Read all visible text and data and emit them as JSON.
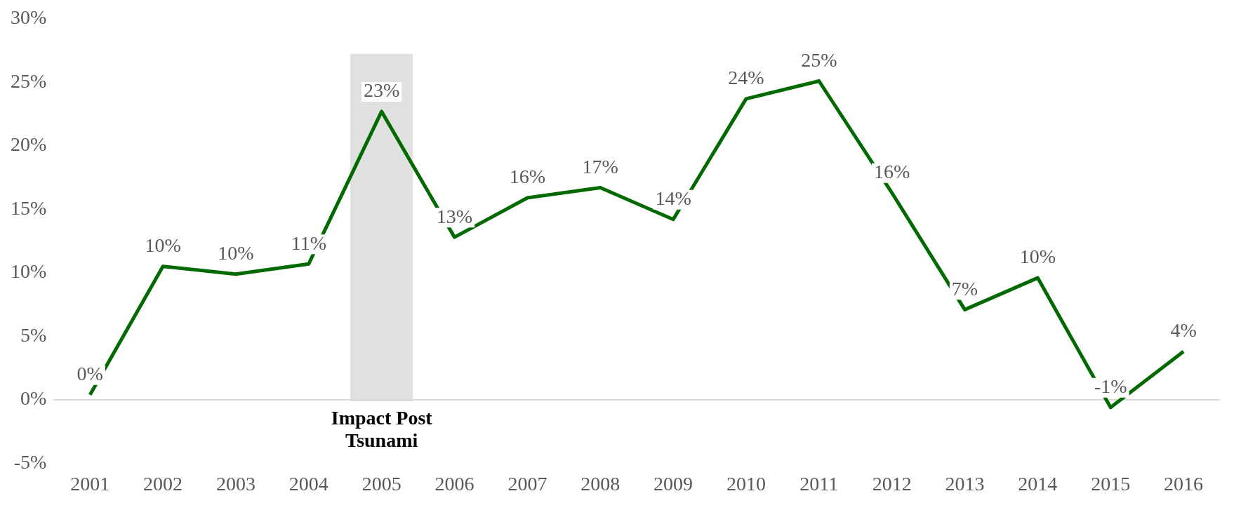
{
  "chart_data": {
    "type": "line",
    "categories": [
      "2001",
      "2002",
      "2003",
      "2004",
      "2005",
      "2006",
      "2007",
      "2008",
      "2009",
      "2010",
      "2011",
      "2012",
      "2013",
      "2014",
      "2015",
      "2016"
    ],
    "series": [
      {
        "color": "#006a00",
        "values": [
          0.4,
          10.5,
          9.9,
          10.7,
          22.7,
          12.8,
          15.9,
          16.7,
          14.2,
          23.7,
          25.1,
          16.3,
          7.1,
          9.6,
          -0.6,
          3.8
        ],
        "value_labels": [
          "0%",
          "10%",
          "10%",
          "11%",
          "23%",
          "13%",
          "16%",
          "17%",
          "14%",
          "24%",
          "25%",
          "16%",
          "7%",
          "10%",
          "-1%",
          "4%"
        ]
      }
    ],
    "ylim": [
      -5,
      30
    ],
    "yticks": [
      {
        "value": -5,
        "label": "-5%"
      },
      {
        "value": 0,
        "label": "0%"
      },
      {
        "value": 5,
        "label": "5%"
      },
      {
        "value": 10,
        "label": "10%"
      },
      {
        "value": 15,
        "label": "15%"
      },
      {
        "value": 20,
        "label": "20%"
      },
      {
        "value": 25,
        "label": "25%"
      },
      {
        "value": 30,
        "label": "30%"
      }
    ],
    "bands": [
      {
        "axis": "x",
        "from": "2005",
        "to": "2005",
        "label": "Impact Post Tsunami",
        "color": "#e0e0e0"
      }
    ],
    "ref_lines": [
      {
        "axis": "y",
        "value": 0,
        "color": "#d9d9d9"
      }
    ],
    "grid": false,
    "legend": false,
    "marker": "none",
    "line_style": "solid"
  }
}
